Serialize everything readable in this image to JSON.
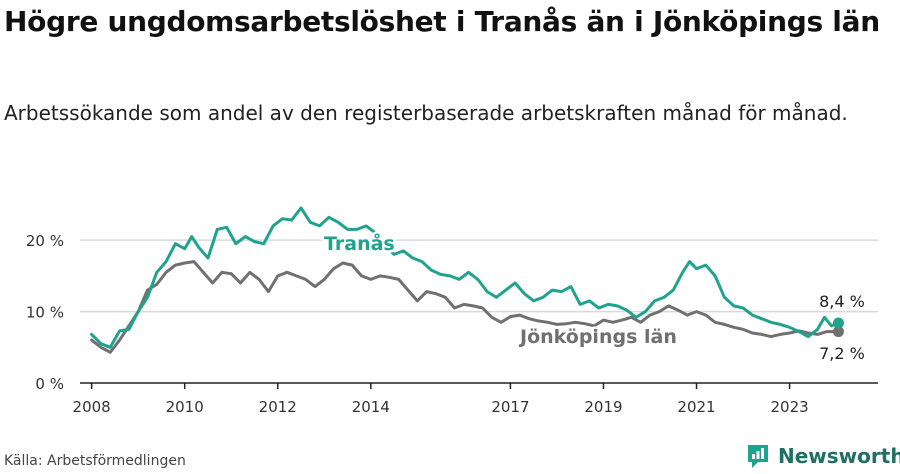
{
  "title": "Högre ungdomsarbetslöshet i Tranås än i Jönköpings län",
  "subtitle": "Arbetssökande som andel av den registerbaserade arbetskraften månad för månad.",
  "source": "Källa: Arbetsförmedlingen",
  "brand": {
    "name": "Newsworthy",
    "icon": "newsworthy-logo-icon"
  },
  "colors": {
    "tranas": "#1fa38f",
    "lan": "#707070",
    "grid": "#d9d9d9",
    "axis": "#222222",
    "brand": "#1f6f63"
  },
  "chart_data": {
    "type": "line",
    "title": "Högre ungdomsarbetslöshet i Tranås än i Jönköpings län",
    "xlabel": "",
    "ylabel": "",
    "xlim": [
      2007.75,
      2024.9
    ],
    "ylim": [
      0,
      21
    ],
    "grid": true,
    "y_ticks": [
      0,
      10,
      20
    ],
    "y_tick_labels": [
      "0 %",
      "10 %",
      "20 %"
    ],
    "x_ticks": [
      2008,
      2010,
      2012,
      2014,
      2017,
      2019,
      2021,
      2023
    ],
    "x_tick_labels": [
      "2008",
      "2010",
      "2012",
      "2014",
      "2017",
      "2019",
      "2021",
      "2023"
    ],
    "series": [
      {
        "name": "Tranås",
        "label": "Tranås",
        "color": "#1fa38f",
        "end_label": "8,4 %",
        "points": [
          [
            2008.0,
            6.8
          ],
          [
            2008.2,
            5.5
          ],
          [
            2008.4,
            5.0
          ],
          [
            2008.6,
            7.3
          ],
          [
            2008.8,
            7.5
          ],
          [
            2009.0,
            10.0
          ],
          [
            2009.2,
            12.0
          ],
          [
            2009.4,
            15.5
          ],
          [
            2009.6,
            17.0
          ],
          [
            2009.8,
            19.5
          ],
          [
            2010.0,
            18.8
          ],
          [
            2010.15,
            20.5
          ],
          [
            2010.3,
            19.0
          ],
          [
            2010.5,
            17.5
          ],
          [
            2010.7,
            21.5
          ],
          [
            2010.9,
            21.8
          ],
          [
            2011.1,
            19.5
          ],
          [
            2011.3,
            20.5
          ],
          [
            2011.5,
            19.8
          ],
          [
            2011.7,
            19.5
          ],
          [
            2011.9,
            22.0
          ],
          [
            2012.1,
            23.0
          ],
          [
            2012.3,
            22.8
          ],
          [
            2012.5,
            24.5
          ],
          [
            2012.7,
            22.5
          ],
          [
            2012.9,
            22.0
          ],
          [
            2013.1,
            23.2
          ],
          [
            2013.3,
            22.5
          ],
          [
            2013.5,
            21.5
          ],
          [
            2013.7,
            21.5
          ],
          [
            2013.9,
            22.0
          ],
          [
            2014.1,
            21.0
          ],
          [
            2014.3,
            19.2
          ],
          [
            2014.5,
            18.0
          ],
          [
            2014.7,
            18.5
          ],
          [
            2014.9,
            17.5
          ],
          [
            2015.1,
            17.0
          ],
          [
            2015.3,
            15.8
          ],
          [
            2015.5,
            15.2
          ],
          [
            2015.7,
            15.0
          ],
          [
            2015.9,
            14.5
          ],
          [
            2016.1,
            15.5
          ],
          [
            2016.3,
            14.5
          ],
          [
            2016.5,
            12.8
          ],
          [
            2016.7,
            12.0
          ],
          [
            2016.9,
            13.0
          ],
          [
            2017.1,
            14.0
          ],
          [
            2017.3,
            12.5
          ],
          [
            2017.5,
            11.5
          ],
          [
            2017.7,
            12.0
          ],
          [
            2017.9,
            13.0
          ],
          [
            2018.1,
            12.8
          ],
          [
            2018.3,
            13.5
          ],
          [
            2018.5,
            11.0
          ],
          [
            2018.7,
            11.5
          ],
          [
            2018.9,
            10.5
          ],
          [
            2019.1,
            11.0
          ],
          [
            2019.3,
            10.8
          ],
          [
            2019.5,
            10.2
          ],
          [
            2019.7,
            9.2
          ],
          [
            2019.9,
            10.0
          ],
          [
            2020.1,
            11.5
          ],
          [
            2020.3,
            12.0
          ],
          [
            2020.5,
            13.0
          ],
          [
            2020.7,
            15.5
          ],
          [
            2020.85,
            17.0
          ],
          [
            2021.0,
            16.0
          ],
          [
            2021.2,
            16.5
          ],
          [
            2021.4,
            15.0
          ],
          [
            2021.6,
            12.0
          ],
          [
            2021.8,
            10.8
          ],
          [
            2022.0,
            10.5
          ],
          [
            2022.2,
            9.5
          ],
          [
            2022.4,
            9.0
          ],
          [
            2022.6,
            8.5
          ],
          [
            2022.8,
            8.2
          ],
          [
            2023.0,
            7.8
          ],
          [
            2023.2,
            7.2
          ],
          [
            2023.4,
            6.5
          ],
          [
            2023.6,
            7.5
          ],
          [
            2023.75,
            9.2
          ],
          [
            2023.9,
            8.0
          ],
          [
            2024.05,
            8.4
          ]
        ]
      },
      {
        "name": "Jönköpings län",
        "label": "Jönköpings län",
        "color": "#707070",
        "end_label": "7,2 %",
        "points": [
          [
            2008.0,
            6.0
          ],
          [
            2008.2,
            5.0
          ],
          [
            2008.4,
            4.3
          ],
          [
            2008.6,
            6.0
          ],
          [
            2008.8,
            8.0
          ],
          [
            2009.0,
            10.0
          ],
          [
            2009.2,
            13.0
          ],
          [
            2009.4,
            13.8
          ],
          [
            2009.6,
            15.5
          ],
          [
            2009.8,
            16.5
          ],
          [
            2010.0,
            16.8
          ],
          [
            2010.2,
            17.0
          ],
          [
            2010.4,
            15.5
          ],
          [
            2010.6,
            14.0
          ],
          [
            2010.8,
            15.5
          ],
          [
            2011.0,
            15.3
          ],
          [
            2011.2,
            14.0
          ],
          [
            2011.4,
            15.5
          ],
          [
            2011.6,
            14.5
          ],
          [
            2011.8,
            12.8
          ],
          [
            2012.0,
            15.0
          ],
          [
            2012.2,
            15.5
          ],
          [
            2012.4,
            15.0
          ],
          [
            2012.6,
            14.5
          ],
          [
            2012.8,
            13.5
          ],
          [
            2013.0,
            14.5
          ],
          [
            2013.2,
            16.0
          ],
          [
            2013.4,
            16.8
          ],
          [
            2013.6,
            16.5
          ],
          [
            2013.8,
            15.0
          ],
          [
            2014.0,
            14.5
          ],
          [
            2014.2,
            15.0
          ],
          [
            2014.4,
            14.8
          ],
          [
            2014.6,
            14.5
          ],
          [
            2014.8,
            13.0
          ],
          [
            2015.0,
            11.5
          ],
          [
            2015.2,
            12.8
          ],
          [
            2015.4,
            12.5
          ],
          [
            2015.6,
            12.0
          ],
          [
            2015.8,
            10.5
          ],
          [
            2016.0,
            11.0
          ],
          [
            2016.2,
            10.8
          ],
          [
            2016.4,
            10.5
          ],
          [
            2016.6,
            9.2
          ],
          [
            2016.8,
            8.5
          ],
          [
            2017.0,
            9.3
          ],
          [
            2017.2,
            9.5
          ],
          [
            2017.4,
            9.0
          ],
          [
            2017.6,
            8.7
          ],
          [
            2017.8,
            8.5
          ],
          [
            2018.0,
            8.2
          ],
          [
            2018.2,
            8.3
          ],
          [
            2018.4,
            8.5
          ],
          [
            2018.6,
            8.3
          ],
          [
            2018.8,
            8.0
          ],
          [
            2019.0,
            8.8
          ],
          [
            2019.2,
            8.5
          ],
          [
            2019.4,
            8.8
          ],
          [
            2019.6,
            9.2
          ],
          [
            2019.8,
            8.5
          ],
          [
            2020.0,
            9.5
          ],
          [
            2020.2,
            10.0
          ],
          [
            2020.4,
            10.8
          ],
          [
            2020.6,
            10.2
          ],
          [
            2020.8,
            9.5
          ],
          [
            2021.0,
            10.0
          ],
          [
            2021.2,
            9.5
          ],
          [
            2021.4,
            8.5
          ],
          [
            2021.6,
            8.2
          ],
          [
            2021.8,
            7.8
          ],
          [
            2022.0,
            7.5
          ],
          [
            2022.2,
            7.0
          ],
          [
            2022.4,
            6.8
          ],
          [
            2022.6,
            6.5
          ],
          [
            2022.8,
            6.8
          ],
          [
            2023.0,
            7.0
          ],
          [
            2023.2,
            7.3
          ],
          [
            2023.4,
            7.0
          ],
          [
            2023.6,
            6.8
          ],
          [
            2023.8,
            7.2
          ],
          [
            2024.05,
            7.2
          ]
        ]
      }
    ]
  }
}
